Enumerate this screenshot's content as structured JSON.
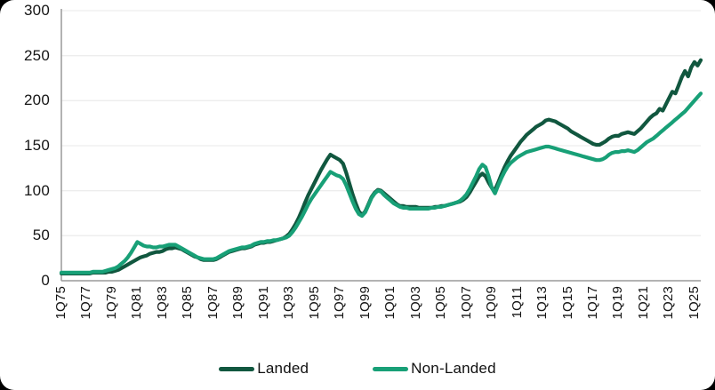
{
  "chart_data": {
    "type": "line",
    "title": "",
    "xlabel": "",
    "ylabel": "",
    "ylim": [
      0,
      300
    ],
    "y_ticks": [
      0,
      50,
      100,
      150,
      200,
      250,
      300
    ],
    "grid": "horizontal",
    "legend_position": "bottom",
    "x_unit": "quarter",
    "x_tick_every": 8,
    "x_tick_labels": [
      "1Q75",
      "1Q77",
      "1Q79",
      "1Q81",
      "1Q83",
      "1Q85",
      "1Q87",
      "1Q89",
      "1Q91",
      "1Q93",
      "1Q95",
      "1Q97",
      "1Q99",
      "1Q01",
      "1Q03",
      "1Q05",
      "1Q07",
      "1Q09",
      "1Q11",
      "1Q13",
      "1Q15",
      "1Q17",
      "1Q19",
      "1Q21",
      "1Q23",
      "1Q25"
    ],
    "colors": {
      "landed": "#11573F",
      "non_landed": "#18A077",
      "axis": "#9a9a9a",
      "grid": "#ededed",
      "text": "#151515"
    },
    "series": [
      {
        "id": "landed",
        "name": "Landed",
        "color": "#11573F",
        "values": [
          8,
          8,
          8,
          8,
          8,
          8,
          8,
          8,
          8,
          8,
          9,
          9,
          9,
          9,
          9,
          10,
          10,
          11,
          12,
          14,
          16,
          18,
          20,
          22,
          24,
          26,
          27,
          28,
          30,
          31,
          32,
          32,
          33,
          35,
          36,
          36,
          37,
          36,
          35,
          33,
          31,
          29,
          27,
          26,
          24,
          23,
          23,
          23,
          23,
          24,
          26,
          28,
          30,
          32,
          33,
          34,
          35,
          36,
          36,
          37,
          38,
          40,
          41,
          42,
          42,
          43,
          43,
          44,
          45,
          46,
          47,
          49,
          52,
          57,
          63,
          70,
          78,
          87,
          95,
          102,
          109,
          116,
          123,
          129,
          135,
          140,
          138,
          136,
          134,
          130,
          120,
          108,
          96,
          86,
          77,
          73,
          77,
          85,
          93,
          98,
          101,
          100,
          97,
          94,
          91,
          88,
          85,
          83,
          83,
          82,
          82,
          82,
          82,
          81,
          81,
          81,
          81,
          81,
          82,
          82,
          83,
          83,
          84,
          85,
          86,
          87,
          88,
          90,
          93,
          98,
          104,
          110,
          116,
          119,
          116,
          109,
          103,
          101,
          109,
          118,
          126,
          133,
          139,
          144,
          149,
          154,
          158,
          162,
          165,
          168,
          171,
          173,
          175,
          178,
          179,
          178,
          177,
          175,
          173,
          171,
          169,
          166,
          164,
          162,
          160,
          158,
          156,
          154,
          152,
          151,
          151,
          153,
          155,
          158,
          160,
          161,
          161,
          163,
          164,
          165,
          164,
          163,
          166,
          169,
          173,
          177,
          181,
          184,
          186,
          191,
          189,
          196,
          203,
          210,
          208,
          217,
          226,
          233,
          227,
          237,
          243,
          239,
          245
        ]
      },
      {
        "id": "non-landed",
        "name": "Non-Landed",
        "color": "#18A077",
        "values": [
          9,
          9,
          9,
          9,
          9,
          9,
          9,
          9,
          9,
          9,
          10,
          10,
          10,
          10,
          11,
          12,
          13,
          14,
          16,
          19,
          22,
          26,
          31,
          37,
          43,
          41,
          39,
          38,
          38,
          37,
          37,
          38,
          38,
          39,
          40,
          40,
          40,
          38,
          36,
          34,
          32,
          30,
          28,
          26,
          25,
          24,
          24,
          24,
          24,
          25,
          27,
          29,
          31,
          33,
          34,
          35,
          36,
          37,
          37,
          38,
          39,
          41,
          42,
          43,
          43,
          44,
          44,
          45,
          45,
          46,
          47,
          48,
          50,
          54,
          59,
          65,
          71,
          78,
          85,
          91,
          96,
          101,
          106,
          111,
          116,
          121,
          119,
          117,
          116,
          113,
          106,
          97,
          88,
          80,
          74,
          72,
          76,
          84,
          92,
          97,
          100,
          99,
          95,
          92,
          89,
          86,
          84,
          82,
          81,
          81,
          80,
          80,
          80,
          80,
          80,
          80,
          80,
          81,
          81,
          82,
          82,
          83,
          84,
          85,
          86,
          87,
          89,
          92,
          96,
          102,
          109,
          116,
          124,
          129,
          126,
          116,
          103,
          97,
          106,
          114,
          121,
          127,
          131,
          134,
          137,
          139,
          141,
          143,
          144,
          145,
          146,
          147,
          148,
          149,
          149,
          148,
          147,
          146,
          145,
          144,
          143,
          142,
          141,
          140,
          139,
          138,
          137,
          136,
          135,
          134,
          134,
          135,
          137,
          140,
          142,
          143,
          143,
          144,
          144,
          145,
          144,
          143,
          145,
          148,
          151,
          154,
          156,
          158,
          161,
          164,
          167,
          170,
          173,
          176,
          179,
          182,
          185,
          188,
          192,
          196,
          200,
          204,
          208
        ]
      }
    ]
  }
}
